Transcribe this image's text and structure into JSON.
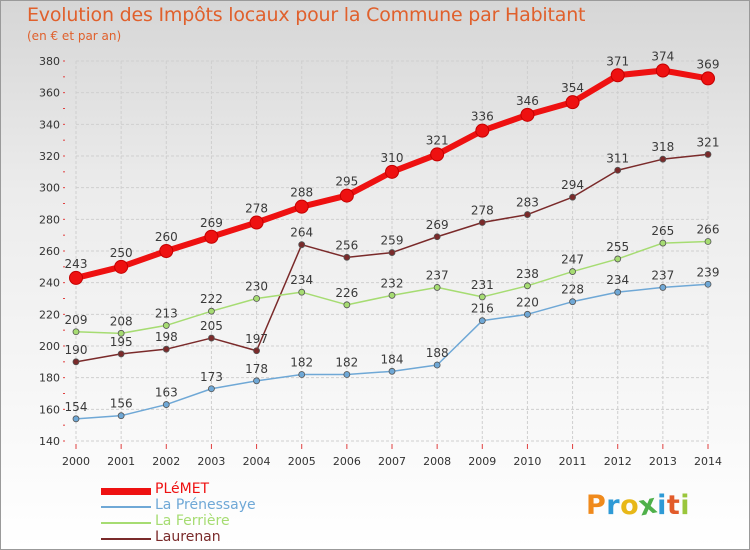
{
  "title": "Evolution des Impôts locaux pour la Commune par Habitant",
  "subtitle": "(en € et par an)",
  "colors": {
    "title": "#e0602c",
    "grid": "#cfcfcf",
    "axis_text": "#333333"
  },
  "logo": {
    "text": "Proxiti",
    "letters": [
      {
        "ch": "P",
        "color": "#f08a1c"
      },
      {
        "ch": "r",
        "color": "#2e9ad6"
      },
      {
        "ch": "o",
        "color": "#e8b818"
      },
      {
        "ch": "x",
        "color": "#4fb04a"
      },
      {
        "ch": "i",
        "color": "#2e9ad6"
      },
      {
        "ch": "t",
        "color": "#e25b2a"
      },
      {
        "ch": "i",
        "color": "#9ac63c"
      }
    ]
  },
  "chart_data": {
    "type": "line",
    "title": "Evolution des Impôts locaux pour la Commune par Habitant",
    "subtitle": "(en € et par an)",
    "xlabel": "",
    "ylabel": "",
    "x": [
      "2000",
      "2001",
      "2002",
      "2003",
      "2004",
      "2005",
      "2006",
      "2007",
      "2008",
      "2009",
      "2010",
      "2011",
      "2012",
      "2013",
      "2014"
    ],
    "ylim": [
      140,
      380
    ],
    "yticks": [
      140,
      160,
      180,
      200,
      220,
      240,
      260,
      280,
      300,
      320,
      340,
      360,
      380
    ],
    "grid": true,
    "legend_position": "bottom-left",
    "series": [
      {
        "name": "PLéMET",
        "color": "#ee1111",
        "values": [
          243,
          250,
          260,
          269,
          278,
          288,
          295,
          310,
          321,
          336,
          346,
          354,
          371,
          374,
          369
        ]
      },
      {
        "name": "La Prénessaye",
        "color": "#6fa8d6",
        "values": [
          154,
          156,
          163,
          173,
          178,
          182,
          182,
          184,
          188,
          216,
          220,
          228,
          234,
          237,
          239
        ]
      },
      {
        "name": "La Ferrière",
        "color": "#a6dc72",
        "values": [
          209,
          208,
          213,
          222,
          230,
          234,
          226,
          232,
          237,
          231,
          238,
          247,
          255,
          265,
          266
        ]
      },
      {
        "name": "Laurenan",
        "color": "#7a2a2a",
        "values": [
          190,
          195,
          198,
          205,
          197,
          264,
          256,
          259,
          269,
          278,
          283,
          294,
          311,
          318,
          321
        ]
      }
    ]
  }
}
